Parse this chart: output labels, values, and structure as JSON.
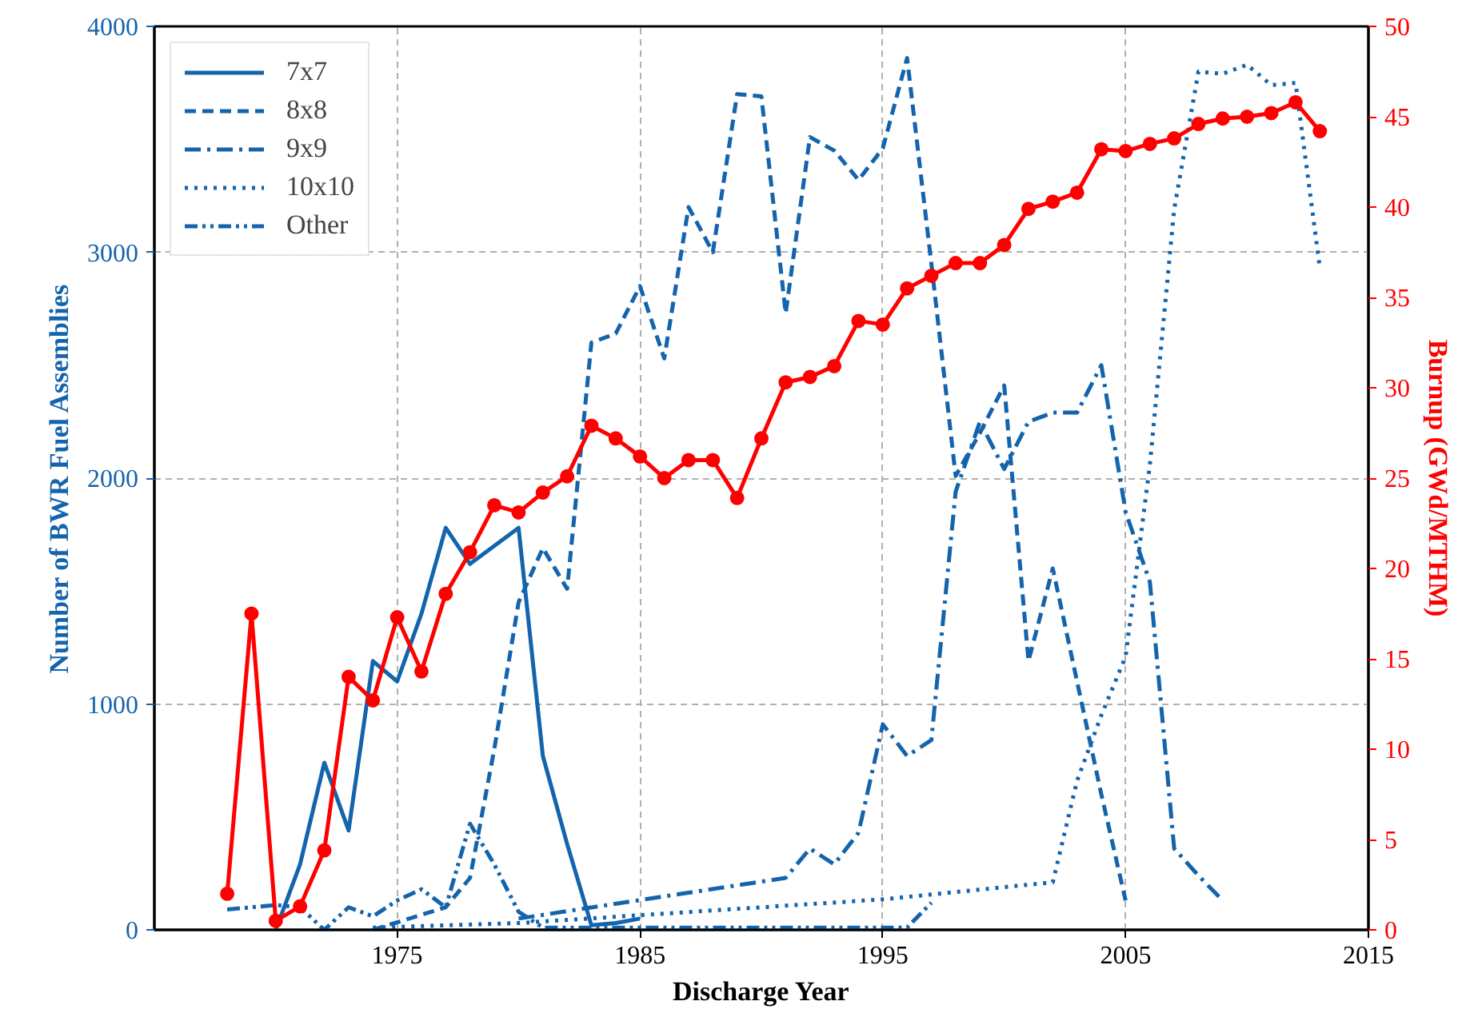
{
  "chart_data": {
    "type": "line",
    "xlabel": "Discharge Year",
    "ylabel": "Number of BWR Fuel Assemblies",
    "y2label": "Burnup (GWd/MTHM)",
    "xlim": [
      1965,
      2015
    ],
    "xticks": [
      1975,
      1985,
      1995,
      2005,
      2015
    ],
    "ylim": [
      0,
      4000
    ],
    "yticks": [
      0,
      1000,
      2000,
      3000,
      4000
    ],
    "y2lim": [
      0,
      50
    ],
    "y2ticks": [
      0,
      5,
      10,
      15,
      20,
      25,
      30,
      35,
      40,
      45,
      50
    ],
    "grid": true,
    "legend": "top left",
    "series": [
      {
        "name": "7x7",
        "color": "#1464ad",
        "line_style": "solid",
        "x": [
          1970,
          1971,
          1972,
          1973,
          1974,
          1975,
          1976,
          1977,
          1978,
          1979,
          1980,
          1981,
          1982,
          1983,
          1984,
          1985
        ],
        "values": [
          0,
          290,
          740,
          440,
          1190,
          1100,
          1400,
          1780,
          1620,
          1700,
          1780,
          770,
          380,
          20,
          30,
          50
        ]
      },
      {
        "name": "8x8",
        "color": "#1464ad",
        "line_style": "dashed",
        "x": [
          1974,
          1977,
          1978,
          1979,
          1980,
          1981,
          1982,
          1983,
          1984,
          1985,
          1986,
          1987,
          1988,
          1989,
          1990,
          1991,
          1992,
          1993,
          1994,
          1995,
          1996,
          1997,
          1998,
          1999,
          2000,
          2001,
          2002,
          2003,
          2004,
          2005
        ],
        "values": [
          0,
          100,
          230,
          800,
          1450,
          1690,
          1510,
          2600,
          2640,
          2850,
          2530,
          3200,
          3000,
          3700,
          3690,
          2730,
          3510,
          3450,
          3320,
          3460,
          3860,
          2950,
          2010,
          2200,
          2410,
          1190,
          1600,
          1100,
          600,
          130
        ]
      },
      {
        "name": "9x9",
        "color": "#1464ad",
        "line_style": "dashdot",
        "x": [
          1980,
          1991,
          1992,
          1993,
          1994,
          1995,
          1996,
          1997,
          1998,
          1999,
          2000,
          2001,
          2002,
          2003,
          2004,
          2005,
          2006,
          2007,
          2008,
          2009
        ],
        "values": [
          50,
          230,
          360,
          290,
          430,
          910,
          770,
          840,
          1940,
          2250,
          2040,
          2250,
          2290,
          2290,
          2500,
          1850,
          1540,
          360,
          240,
          130
        ]
      },
      {
        "name": "10x10",
        "color": "#1464ad",
        "line_style": "dotted",
        "x": [
          1974,
          1980,
          1995,
          2001,
          2002,
          2003,
          2004,
          2005,
          2006,
          2007,
          2008,
          2009,
          2010,
          2011,
          2012,
          2013
        ],
        "values": [
          10,
          30,
          135,
          200,
          210,
          660,
          950,
          1210,
          2060,
          3190,
          3800,
          3790,
          3830,
          3740,
          3750,
          2930
        ]
      },
      {
        "name": "Other",
        "color": "#1464ad",
        "line_style": "dashdotdot",
        "x": [
          1968,
          1970,
          1971,
          1972,
          1973,
          1974,
          1975,
          1976,
          1977,
          1978,
          1979,
          1980,
          1981,
          1996,
          1997
        ],
        "values": [
          90,
          110,
          100,
          0,
          100,
          60,
          130,
          180,
          100,
          470,
          290,
          80,
          10,
          10,
          120
        ]
      },
      {
        "color": "#ff0000",
        "axis": "y2",
        "marker": "circle",
        "line_style": "solid",
        "x": [
          1968,
          1969,
          1970,
          1971,
          1972,
          1973,
          1974,
          1975,
          1976,
          1977,
          1978,
          1979,
          1980,
          1981,
          1982,
          1983,
          1984,
          1985,
          1986,
          1987,
          1988,
          1989,
          1990,
          1991,
          1992,
          1993,
          1994,
          1995,
          1996,
          1997,
          1998,
          1999,
          2000,
          2001,
          2002,
          2003,
          2004,
          2005,
          2006,
          2007,
          2008,
          2009,
          2010,
          2011,
          2012,
          2013
        ],
        "values": [
          2.0,
          17.5,
          0.5,
          1.3,
          4.4,
          14.0,
          12.7,
          17.3,
          14.3,
          18.6,
          20.9,
          23.5,
          23.1,
          24.2,
          25.1,
          27.9,
          27.2,
          26.2,
          25.0,
          26.0,
          26.0,
          23.9,
          27.2,
          30.3,
          30.6,
          31.2,
          33.7,
          33.5,
          35.5,
          36.2,
          36.9,
          36.9,
          37.9,
          39.9,
          40.3,
          40.8,
          43.2,
          43.1,
          43.5,
          43.8,
          44.6,
          44.9,
          45.0,
          45.2,
          45.8,
          44.2
        ]
      }
    ]
  }
}
